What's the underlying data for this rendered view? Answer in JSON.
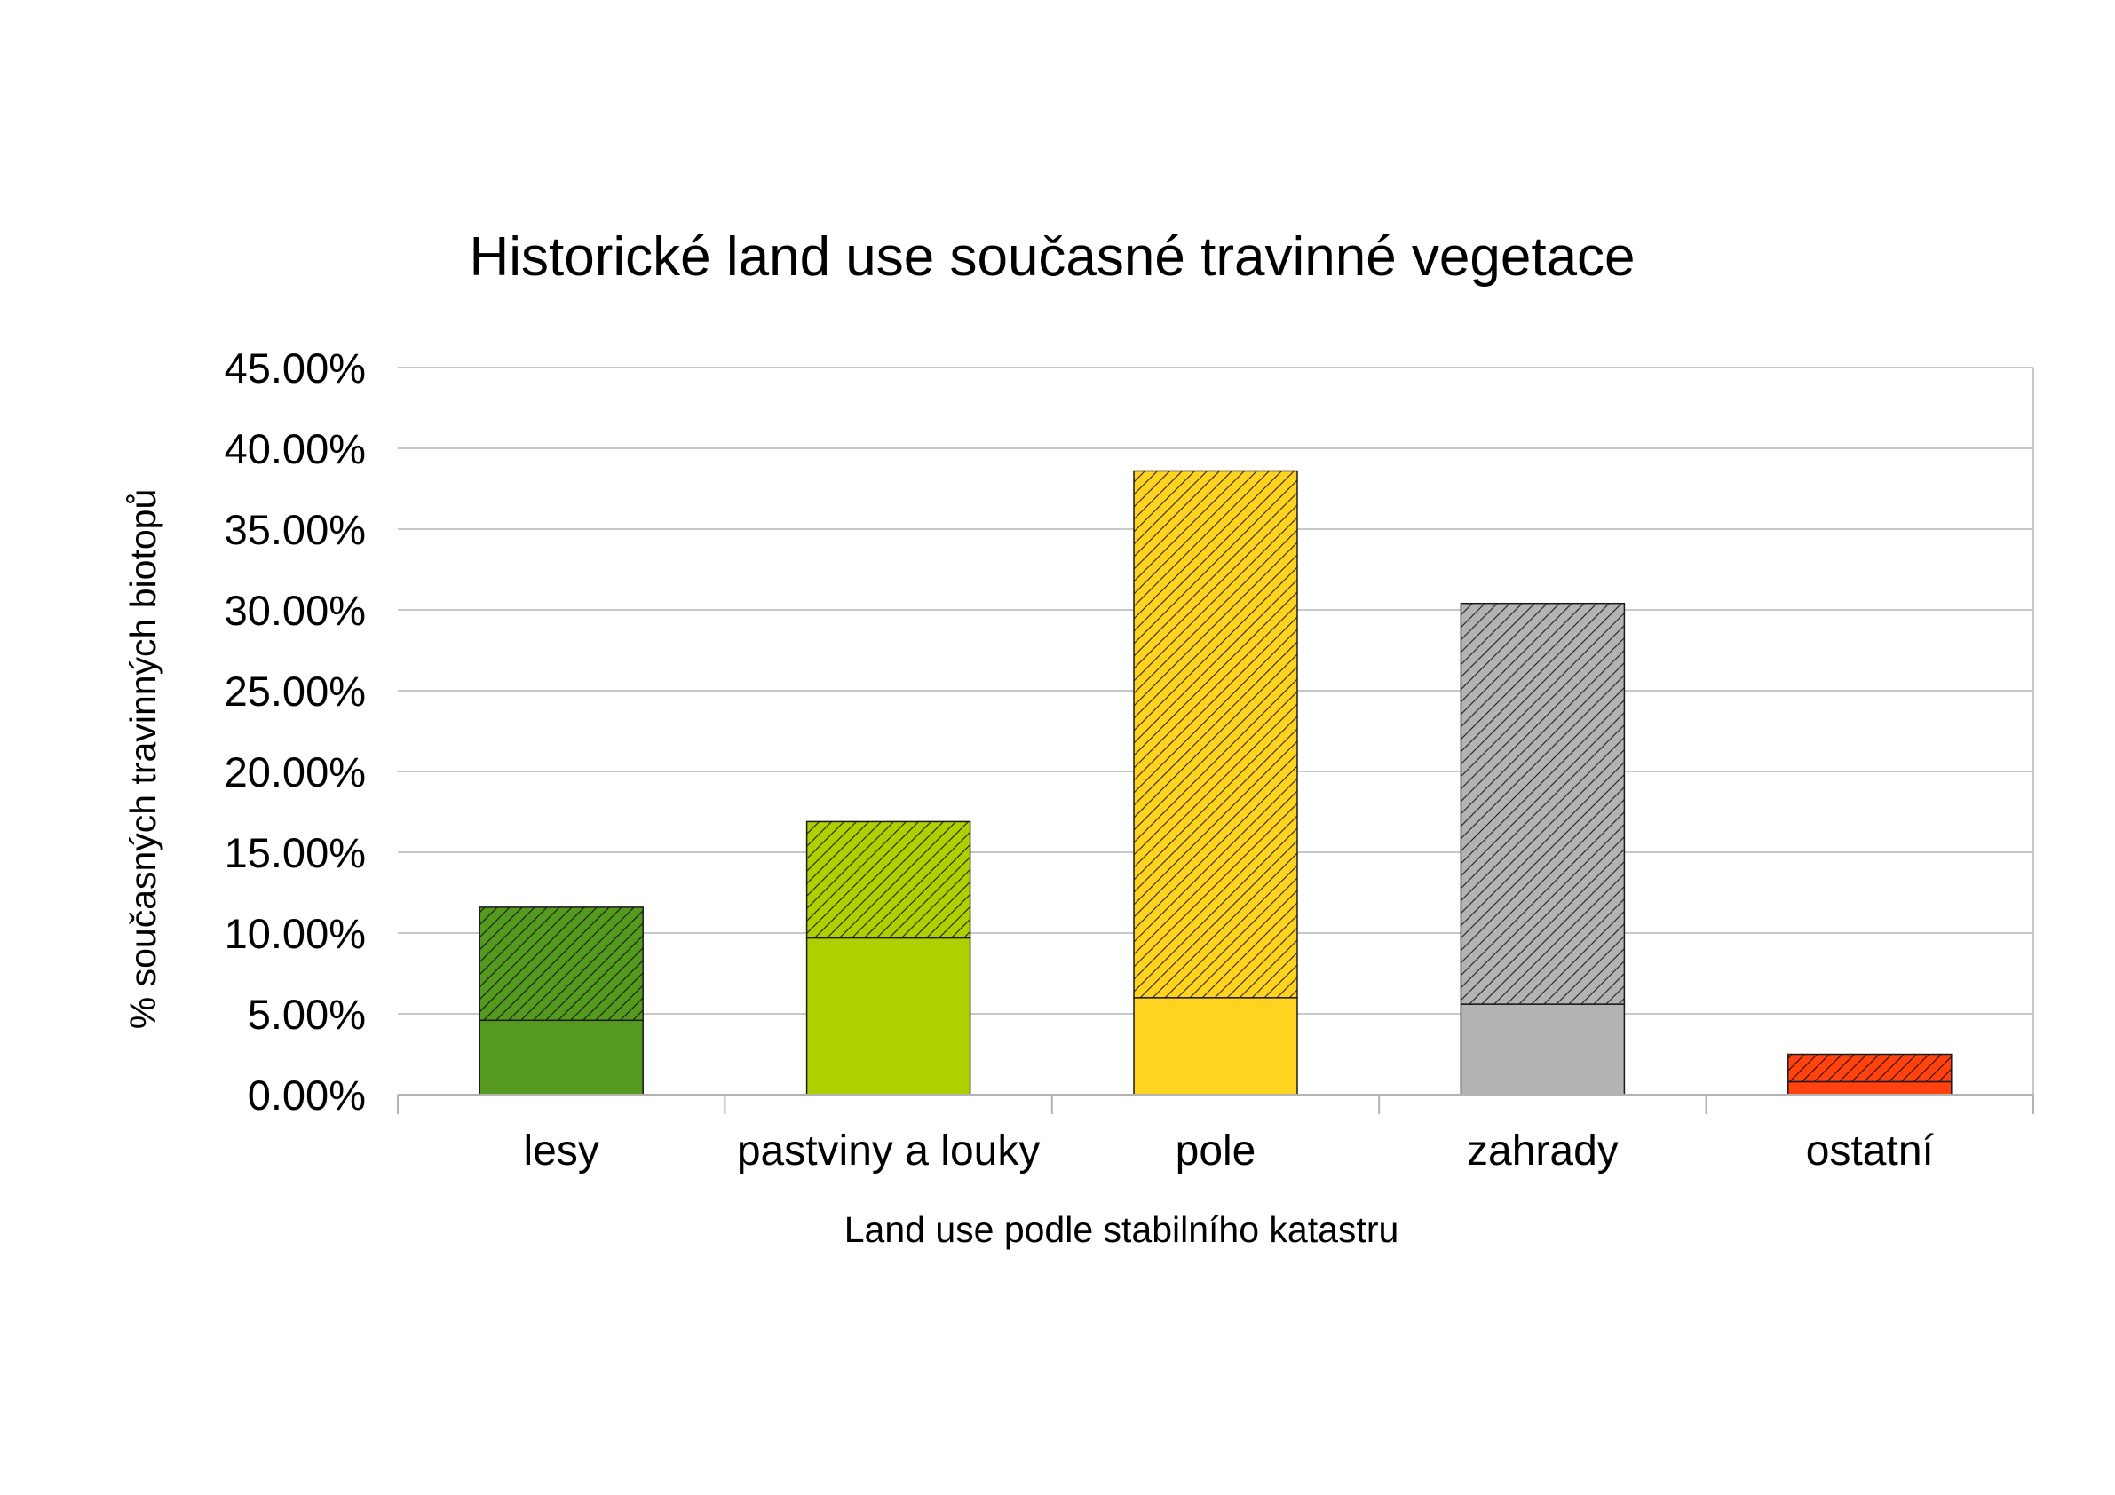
{
  "chart_data": {
    "type": "bar",
    "stacked": true,
    "title": "Historické land use současné travinné vegetace",
    "xlabel": "Land use podle stabilního katastru",
    "ylabel": "% současných travinných biotopů",
    "categories": [
      "lesy",
      "pastviny a louky",
      "pole",
      "zahrady",
      "ostatní"
    ],
    "ylim": [
      0,
      45
    ],
    "yticks": [
      0,
      5,
      10,
      15,
      20,
      25,
      30,
      35,
      40,
      45
    ],
    "ytick_labels": [
      "0.00%",
      "5.00%",
      "10.00%",
      "15.00%",
      "20.00%",
      "25.00%",
      "30.00%",
      "35.00%",
      "40.00%",
      "45.00%"
    ],
    "grid": true,
    "legend": "none",
    "colors": [
      "#55991f",
      "#aecf00",
      "#ffd320",
      "#b3b3b3",
      "#ff420e"
    ],
    "series": [
      {
        "pattern": "solid",
        "values": [
          4.6,
          9.7,
          6.0,
          5.6,
          0.8
        ]
      },
      {
        "pattern": "hatched",
        "values": [
          7.0,
          7.2,
          32.6,
          24.8,
          1.7
        ]
      }
    ]
  }
}
